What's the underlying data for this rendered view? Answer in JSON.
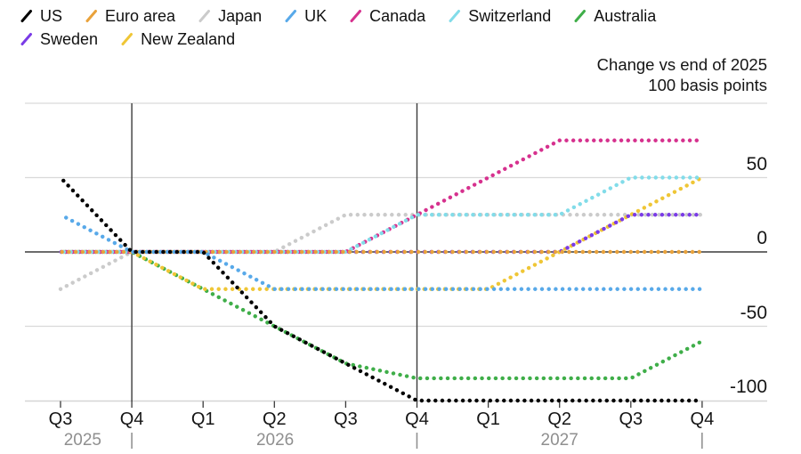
{
  "legend": {
    "rows": [
      [
        "US",
        "Euro area",
        "Japan",
        "UK",
        "Canada",
        "Switzerland",
        "Australia"
      ],
      [
        "Sweden",
        "New Zealand"
      ]
    ]
  },
  "chart_data": {
    "type": "line",
    "line_style": "dotted",
    "title": "Change vs end of 2025",
    "subtitle": "100 basis points",
    "x_labels": [
      "Q3",
      "Q4",
      "Q1",
      "Q2",
      "Q3",
      "Q4",
      "Q1",
      "Q2",
      "Q3",
      "Q4"
    ],
    "year_labels": [
      {
        "label": "2025",
        "anchor_index": 0.31
      },
      {
        "label": "2026",
        "anchor_index": 3.01
      },
      {
        "label": "2027",
        "anchor_index": 7.0
      }
    ],
    "year_pipe_indices": [
      1,
      5,
      9
    ],
    "divider_indices": [
      1,
      5
    ],
    "y_tick_values": [
      50,
      0,
      -50,
      -100
    ],
    "y_tick_labels": [
      "50",
      "0",
      "-50",
      "-100"
    ],
    "ylim": [
      -100,
      100
    ],
    "grid": true,
    "legend_position": "top-left",
    "units": "basis points",
    "series": [
      {
        "name": "US",
        "color": "#000000",
        "values": [
          50,
          0,
          0,
          -50,
          -75,
          -100,
          -100,
          -100,
          -100,
          -100
        ]
      },
      {
        "name": "Euro area",
        "color": "#E9A23B",
        "values": [
          0,
          0,
          0,
          0,
          0,
          0,
          0,
          0,
          0,
          0
        ]
      },
      {
        "name": "Japan",
        "color": "#CBCBCB",
        "values": [
          -25,
          0,
          0,
          0,
          25,
          25,
          25,
          25,
          25,
          25
        ]
      },
      {
        "name": "UK",
        "color": "#58A9E9",
        "values": [
          25,
          0,
          0,
          -25,
          -25,
          -25,
          -25,
          -25,
          -25,
          -25
        ]
      },
      {
        "name": "Canada",
        "color": "#D6318E",
        "values": [
          0,
          0,
          0,
          0,
          0,
          25,
          50,
          75,
          75,
          75
        ]
      },
      {
        "name": "Switzerland",
        "color": "#82DCE9",
        "values": [
          0,
          0,
          0,
          0,
          0,
          25,
          25,
          25,
          50,
          50
        ]
      },
      {
        "name": "Australia",
        "color": "#3FAE49",
        "values": [
          0,
          0,
          -25,
          -50,
          -75,
          -85,
          -85,
          -85,
          -85,
          -60
        ]
      },
      {
        "name": "Sweden",
        "color": "#7A3BE6",
        "values": [
          0,
          0,
          0,
          0,
          0,
          0,
          0,
          0,
          25,
          25
        ]
      },
      {
        "name": "New Zealand",
        "color": "#EFC636",
        "values": [
          0,
          0,
          -25,
          -25,
          -25,
          -25,
          -25,
          0,
          25,
          50
        ]
      }
    ],
    "draw_order": [
      "Japan",
      "Australia",
      "New Zealand",
      "Sweden",
      "Canada",
      "Switzerland",
      "Euro area",
      "UK",
      "US"
    ]
  }
}
